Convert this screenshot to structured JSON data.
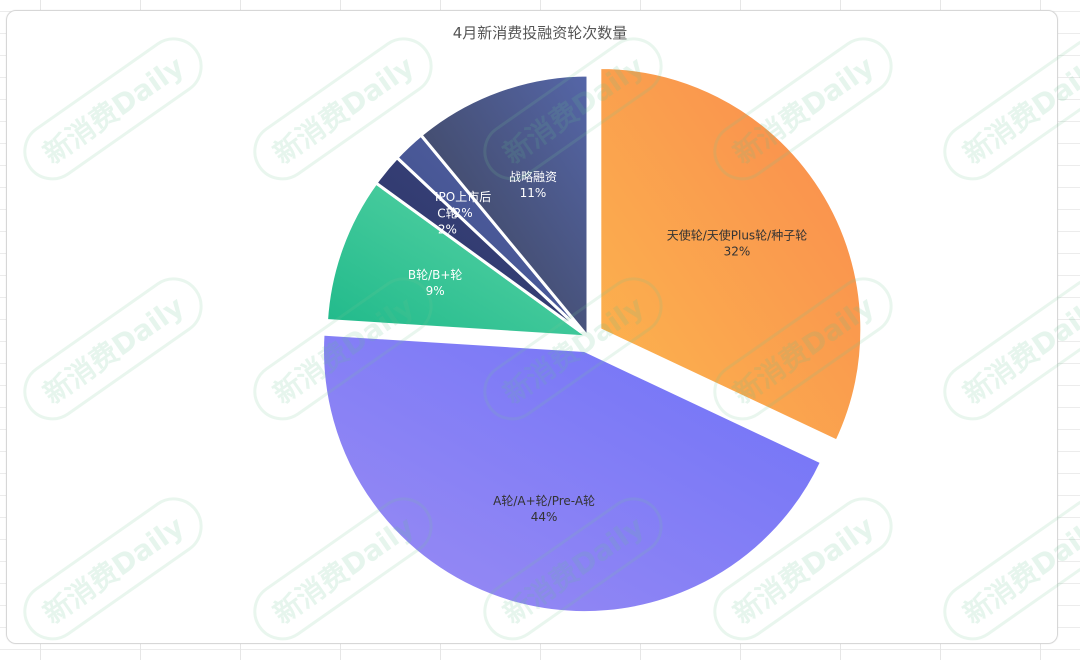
{
  "chart_data": {
    "type": "pie",
    "title": "4月新消费投融资轮次数量",
    "slices": [
      {
        "label": "天使轮/天使Plus轮/种子轮",
        "value": 32,
        "value_label": "32%",
        "gradient": [
          "#fcb64d",
          "#f98a4f"
        ],
        "label_color": "#333333",
        "exploded": true
      },
      {
        "label": "A轮/A+轮/Pre-A轮",
        "value": 44,
        "value_label": "44%",
        "gradient": [
          "#9a8cf3",
          "#6f72f8"
        ],
        "label_color": "#333333",
        "exploded": true
      },
      {
        "label": "B轮/B+轮",
        "value": 9,
        "value_label": "9%",
        "gradient": [
          "#1fb98a",
          "#5fd6a8"
        ],
        "label_color": "#ffffff",
        "exploded": false
      },
      {
        "label": "C轮",
        "value": 2,
        "value_label": "2%",
        "gradient": [
          "#2b3466",
          "#3c4680"
        ],
        "label_color": "#ffffff",
        "exploded": false
      },
      {
        "label": "IPO上市后",
        "value": 2,
        "value_label": "2%",
        "gradient": [
          "#3d4a86",
          "#5566a8"
        ],
        "label_color": "#ffffff",
        "exploded": false
      },
      {
        "label": "战略融资",
        "value": 11,
        "value_label": "11%",
        "gradient": [
          "#3a3f4f",
          "#5566a8"
        ],
        "label_color": "#ffffff",
        "exploded": false
      }
    ],
    "start_angle_deg": 0,
    "direction": "clockwise",
    "legend": "none"
  },
  "watermark": {
    "text": "新消费Daily",
    "color": "#78c896"
  }
}
